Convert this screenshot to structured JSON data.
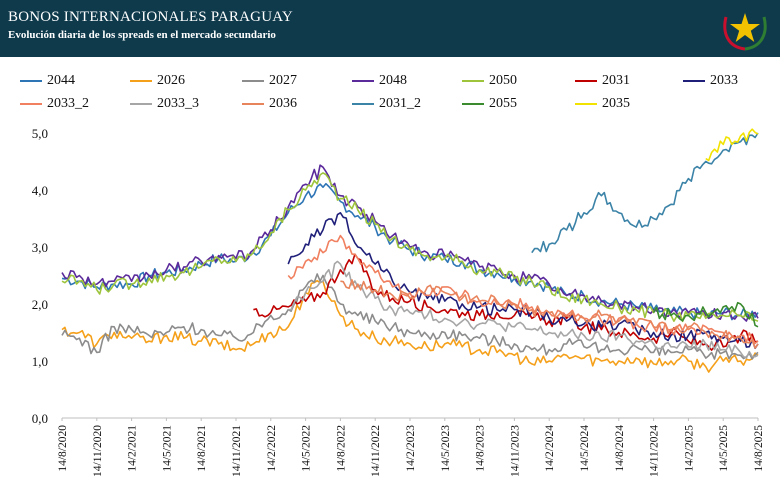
{
  "header": {
    "title": "BONOS INTERNACIONALES PARAGUAY",
    "subtitle": "Evolución diaria de los spreads en el mercado secundario"
  },
  "colors": {
    "header_bg": "#0e3a4c",
    "logo_star": "#f2c200",
    "logo_wreath": "#c8102e"
  },
  "logo": {
    "icon": "paraguay-star-emblem-icon"
  },
  "chart_data": {
    "type": "line",
    "title": "BONOS INTERNACIONALES PARAGUAY",
    "subtitle": "Evolución diaria de los spreads en el mercado secundario",
    "ylim": [
      0,
      5
    ],
    "yticks": [
      "0,0",
      "1,0",
      "2,0",
      "3,0",
      "4,0",
      "5,0"
    ],
    "xticks": [
      "14/8/2020",
      "14/11/2020",
      "14/2/2021",
      "14/5/2021",
      "14/8/2021",
      "14/11/2021",
      "14/2/2022",
      "14/5/2022",
      "14/8/2022",
      "14/11/2022",
      "14/2/2023",
      "14/5/2023",
      "14/8/2023",
      "14/11/2023",
      "14/2/2024",
      "14/5/2024",
      "14/8/2024",
      "14/11/2024",
      "14/2/2025",
      "14/5/2025",
      "14/8/2025"
    ],
    "grid": false,
    "legend_position": "top",
    "series": [
      {
        "name": "2044",
        "color": "#2e75b6",
        "start": 0,
        "values": [
          2.45,
          2.4,
          2.3,
          2.35,
          2.35,
          2.5,
          2.55,
          2.6,
          2.7,
          2.8,
          2.75,
          2.9,
          3.2,
          3.6,
          3.9,
          4.05,
          3.8,
          3.55,
          3.35,
          3.1,
          2.95,
          2.85,
          2.8,
          2.75,
          2.6,
          2.55,
          2.45,
          2.4,
          2.3,
          2.15,
          2.15,
          2.05,
          2.0,
          1.95,
          1.9,
          1.85,
          1.85,
          1.8,
          1.85,
          1.8,
          1.85
        ]
      },
      {
        "name": "2026",
        "color": "#f5a01a",
        "start": 0,
        "values": [
          1.55,
          1.5,
          1.3,
          1.5,
          1.4,
          1.35,
          1.45,
          1.4,
          1.35,
          1.3,
          1.2,
          1.3,
          1.5,
          1.6,
          2.2,
          2.4,
          1.8,
          1.55,
          1.4,
          1.35,
          1.3,
          1.25,
          1.3,
          1.25,
          1.2,
          1.15,
          1.1,
          0.95,
          1.0,
          1.1,
          1.05,
          1.0,
          1.0,
          1.05,
          0.95,
          1.0,
          1.0,
          0.9,
          1.0,
          1.0,
          1.1
        ]
      },
      {
        "name": "2027",
        "color": "#8c8c8c",
        "start": 0,
        "values": [
          1.45,
          1.4,
          1.15,
          1.6,
          1.55,
          1.45,
          1.5,
          1.6,
          1.55,
          1.45,
          1.4,
          1.5,
          1.8,
          1.9,
          2.3,
          2.5,
          2.0,
          1.8,
          1.7,
          1.6,
          1.5,
          1.45,
          1.5,
          1.45,
          1.4,
          1.35,
          1.3,
          1.2,
          1.2,
          1.3,
          1.25,
          1.2,
          1.2,
          1.25,
          1.15,
          1.15,
          1.2,
          1.05,
          1.15,
          1.1,
          1.15
        ]
      },
      {
        "name": "2048",
        "color": "#5b2a9b",
        "start": 0,
        "values": [
          2.55,
          2.5,
          2.35,
          2.4,
          2.4,
          2.5,
          2.6,
          2.65,
          2.75,
          2.85,
          2.8,
          2.95,
          3.3,
          3.7,
          4.1,
          4.4,
          3.9,
          3.7,
          3.45,
          3.2,
          3.0,
          2.9,
          2.85,
          2.8,
          2.65,
          2.6,
          2.5,
          2.45,
          2.35,
          2.15,
          2.15,
          2.05,
          2.0,
          1.95,
          1.9,
          1.85,
          1.85,
          1.8,
          1.85,
          1.8,
          1.75
        ]
      },
      {
        "name": "2050",
        "color": "#9dc43b",
        "start": 0,
        "values": [
          2.4,
          2.4,
          2.25,
          2.35,
          2.35,
          2.45,
          2.5,
          2.55,
          2.65,
          2.8,
          2.75,
          2.9,
          3.25,
          3.65,
          4.0,
          4.3,
          3.85,
          3.65,
          3.4,
          3.15,
          2.95,
          2.85,
          2.8,
          2.75,
          2.6,
          2.55,
          2.45,
          2.4,
          2.3,
          2.1,
          2.1,
          2.0,
          1.95,
          1.9,
          1.85,
          1.8,
          1.8,
          1.75,
          1.8,
          1.8,
          1.7
        ]
      },
      {
        "name": "2031",
        "color": "#c00000",
        "start": 11,
        "values": [
          1.9,
          1.85,
          1.95,
          2.05,
          2.2,
          2.6,
          2.8,
          2.25,
          2.1,
          2.05,
          1.95,
          1.9,
          1.85,
          1.8,
          1.85,
          1.8,
          1.75,
          1.7,
          1.75,
          1.6,
          1.55,
          1.5,
          1.45,
          1.4,
          1.5,
          1.35,
          1.3,
          1.25,
          1.45,
          1.35
        ]
      },
      {
        "name": "2033",
        "color": "#1f1f7a",
        "start": 13,
        "values": [
          2.7,
          3.05,
          3.3,
          3.6,
          3.0,
          2.7,
          2.4,
          2.2,
          2.1,
          2.05,
          2.0,
          1.95,
          1.9,
          1.9,
          1.85,
          1.75,
          1.7,
          1.65,
          1.6,
          1.65,
          1.55,
          1.5,
          1.45,
          1.45,
          1.5,
          1.4,
          1.35,
          1.3
        ]
      },
      {
        "name": "2033_2",
        "color": "#f08060",
        "start": 13,
        "values": [
          2.5,
          2.75,
          2.9,
          3.2,
          2.8,
          2.55,
          2.3,
          2.2,
          2.15,
          2.3,
          2.15,
          2.05,
          2.0,
          2.0,
          1.95,
          1.85,
          1.8,
          1.75,
          1.7,
          1.75,
          1.65,
          1.6,
          1.55,
          1.55,
          1.6,
          1.5,
          1.45,
          1.35
        ]
      },
      {
        "name": "2033_3",
        "color": "#a6a6a6",
        "start": 13,
        "values": [
          1.9,
          2.2,
          2.4,
          2.7,
          2.3,
          2.1,
          1.9,
          1.85,
          1.8,
          1.75,
          1.7,
          1.65,
          1.65,
          1.6,
          1.55,
          1.5,
          1.45,
          1.45,
          1.4,
          1.45,
          1.35,
          1.3,
          1.25,
          1.25,
          1.3,
          1.2,
          1.15,
          1.1
        ]
      },
      {
        "name": "2036",
        "color": "#e8845c",
        "start": 16,
        "values": [
          2.4,
          2.35,
          2.25,
          2.15,
          2.1,
          2.3,
          2.2,
          2.1,
          2.05,
          2.05,
          2.0,
          1.9,
          1.85,
          1.8,
          1.75,
          1.8,
          1.7,
          1.65,
          1.6,
          1.55,
          1.6,
          1.5,
          1.45,
          1.4,
          1.3
        ]
      },
      {
        "name": "2031_2",
        "color": "#3c83a8",
        "start": 27,
        "values": [
          2.9,
          3.05,
          3.3,
          3.6,
          3.9,
          3.6,
          3.35,
          3.5,
          3.75,
          4.2,
          4.5,
          4.7,
          4.85,
          5.0
        ]
      },
      {
        "name": "2055",
        "color": "#3a8a2e",
        "start": 34,
        "values": [
          1.85,
          1.8,
          1.8,
          1.85,
          1.95,
          2.0,
          1.6
        ]
      },
      {
        "name": "2035",
        "color": "#f2e200",
        "start": 37,
        "values": [
          4.55,
          4.8,
          4.95,
          4.98
        ]
      }
    ]
  }
}
